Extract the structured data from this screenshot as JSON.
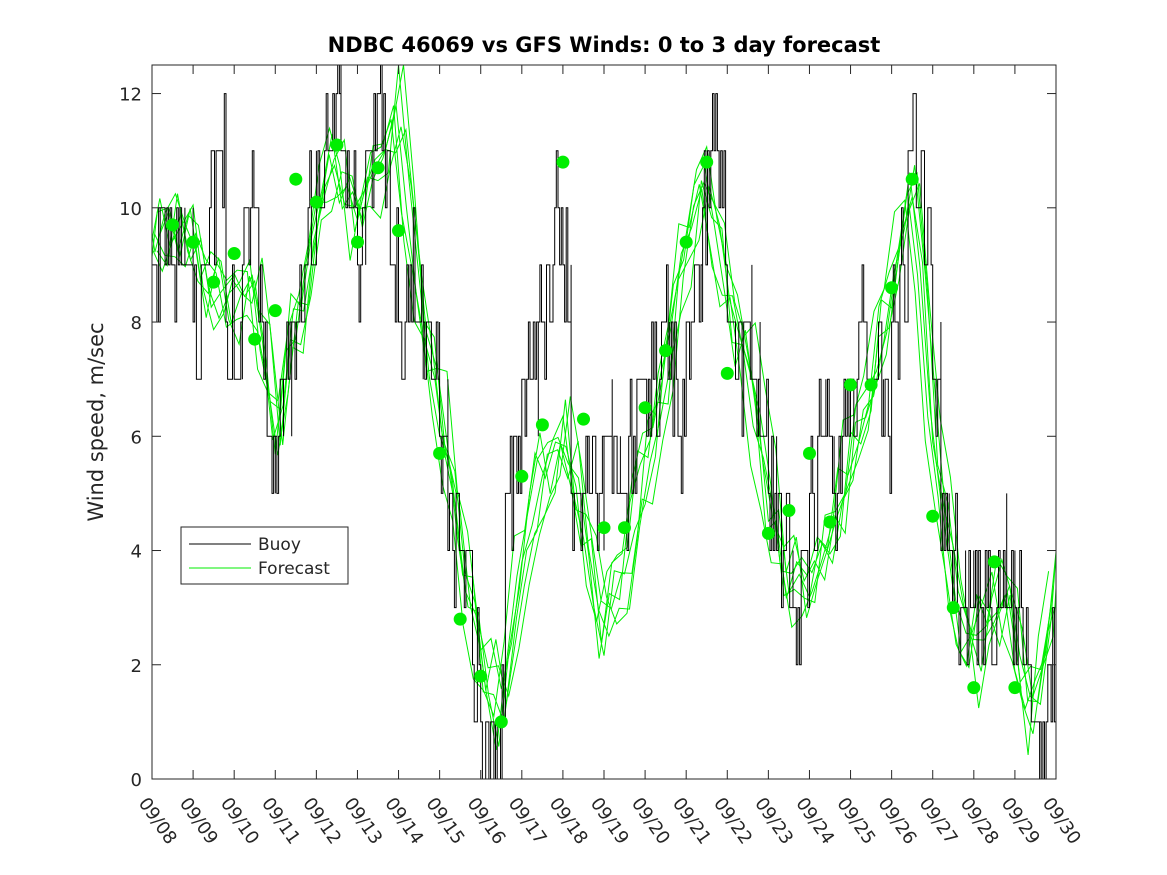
{
  "chart_data": {
    "type": "line",
    "title": "NDBC 46069 vs GFS Winds: 0 to 3 day forecast",
    "xlabel": "",
    "ylabel": "Wind speed, m/sec",
    "xlim": [
      "09/08",
      "09/30"
    ],
    "ylim": [
      0,
      12.5
    ],
    "x_tick_labels": [
      "09/08",
      "09/09",
      "09/10",
      "09/11",
      "09/12",
      "09/13",
      "09/14",
      "09/15",
      "09/16",
      "09/17",
      "09/18",
      "09/19",
      "09/20",
      "09/21",
      "09/22",
      "09/23",
      "09/24",
      "09/25",
      "09/26",
      "09/27",
      "09/28",
      "09/29",
      "09/30"
    ],
    "y_ticks": [
      0,
      2,
      4,
      6,
      8,
      10,
      12
    ],
    "grid": false,
    "legend": {
      "position": "middle-left",
      "entries": [
        "Buoy",
        "Forecast"
      ]
    },
    "colors": {
      "buoy": "#000000",
      "forecast": "#00ee00",
      "axis": "#262626"
    },
    "series": [
      {
        "name": "Buoy",
        "style": "step",
        "x_day_of_month": [
          8.0,
          8.2,
          8.4,
          8.6,
          8.8,
          9.0,
          9.2,
          9.4,
          9.6,
          9.8,
          10.0,
          10.2,
          10.4,
          10.6,
          10.8,
          11.0,
          11.2,
          11.4,
          11.6,
          11.8,
          12.0,
          12.2,
          12.4,
          12.6,
          12.8,
          13.0,
          13.2,
          13.4,
          13.6,
          13.8,
          14.0,
          14.2,
          14.4,
          14.6,
          14.8,
          15.0,
          15.2,
          15.4,
          15.6,
          15.8,
          16.0,
          16.2,
          16.4,
          16.6,
          16.8,
          17.0,
          17.2,
          17.4,
          17.6,
          17.8,
          18.0,
          18.2,
          18.4,
          18.6,
          18.8,
          19.0,
          19.2,
          19.4,
          19.6,
          19.8,
          20.0,
          20.2,
          20.4,
          20.6,
          20.8,
          21.0,
          21.2,
          21.4,
          21.6,
          21.8,
          22.0,
          22.2,
          22.4,
          22.6,
          22.8,
          23.0,
          23.2,
          23.4,
          23.6,
          23.8,
          24.0,
          24.2,
          24.4,
          24.6,
          24.8,
          25.0,
          25.2,
          25.4,
          25.6,
          25.8,
          26.0,
          26.2,
          26.4,
          26.6,
          26.8,
          27.0,
          27.2,
          27.4,
          27.6,
          27.8,
          28.0,
          28.2,
          28.4,
          28.6,
          28.8,
          29.0,
          29.2,
          29.4,
          29.6,
          29.8,
          30.0
        ],
        "values": [
          9,
          10,
          9,
          10,
          9,
          8,
          9,
          10,
          11,
          8,
          7,
          9,
          10,
          8,
          6,
          6,
          7,
          8,
          9,
          10,
          10,
          11,
          12,
          11,
          10,
          9,
          11,
          12,
          11,
          9,
          8,
          9,
          8,
          8,
          7,
          6,
          4,
          5,
          3,
          2,
          1,
          0,
          1,
          5,
          6,
          7,
          7,
          8,
          9,
          10,
          9,
          5,
          5,
          6,
          5,
          6,
          5,
          5,
          6,
          7,
          7,
          7,
          8,
          7,
          6,
          8,
          9,
          10,
          11,
          10,
          8,
          7,
          8,
          7,
          6,
          5,
          4,
          4,
          3,
          4,
          5,
          6,
          6,
          5,
          6,
          7,
          8,
          7,
          7,
          6,
          8,
          9,
          11,
          10,
          9,
          7,
          4,
          4,
          3,
          3,
          3,
          3,
          3,
          4,
          3,
          3,
          2,
          1,
          1,
          2,
          2
        ]
      },
      {
        "name": "Forecast",
        "style": "line",
        "x_day_of_month": [
          8.0,
          8.5,
          9.0,
          9.5,
          10.0,
          10.5,
          11.0,
          11.5,
          12.0,
          12.5,
          13.0,
          13.5,
          14.0,
          14.5,
          15.0,
          15.5,
          16.0,
          16.5,
          17.0,
          17.5,
          18.0,
          18.5,
          19.0,
          19.5,
          20.0,
          20.5,
          21.0,
          21.5,
          22.0,
          22.5,
          23.0,
          23.5,
          24.0,
          24.5,
          25.0,
          25.5,
          26.0,
          26.5,
          27.0,
          27.5,
          28.0,
          28.5,
          29.0,
          29.5,
          30.0
        ],
        "values": [
          9.3,
          9.7,
          9.4,
          8.6,
          8.4,
          8.5,
          6.3,
          7.8,
          9.9,
          10.8,
          9.7,
          10.6,
          11.9,
          8.3,
          6.5,
          4.0,
          2.3,
          1.3,
          3.5,
          5.3,
          6.0,
          4.6,
          2.7,
          3.6,
          5.6,
          6.8,
          9.4,
          10.6,
          8.4,
          7.2,
          5.1,
          3.5,
          3.2,
          4.0,
          5.8,
          7.0,
          8.4,
          10.9,
          6.0,
          3.3,
          2.0,
          3.2,
          2.6,
          1.2,
          3.4
        ]
      }
    ],
    "daily_markers": {
      "name": "Forecast",
      "x_day_of_month": [
        8.5,
        9.0,
        9.5,
        10.0,
        10.5,
        11.0,
        11.5,
        12.0,
        12.5,
        13.0,
        13.5,
        14.0,
        15.0,
        15.5,
        16.0,
        16.5,
        17.0,
        17.5,
        18.0,
        18.5,
        19.0,
        19.5,
        20.0,
        20.5,
        21.0,
        21.5,
        22.0,
        23.0,
        23.5,
        24.0,
        24.5,
        25.0,
        25.5,
        26.0,
        26.5,
        27.0,
        27.5,
        28.0,
        28.5,
        29.0
      ],
      "values": [
        9.7,
        9.4,
        8.7,
        9.2,
        7.7,
        8.2,
        10.5,
        10.1,
        11.1,
        9.4,
        10.7,
        9.6,
        5.7,
        2.8,
        1.8,
        1.0,
        5.3,
        6.2,
        10.8,
        6.3,
        4.4,
        4.4,
        6.5,
        7.5,
        9.4,
        10.8,
        7.1,
        4.3,
        4.7,
        5.7,
        4.5,
        6.9,
        6.9,
        8.6,
        10.5,
        4.6,
        3.0,
        1.6,
        3.8,
        1.6
      ]
    }
  }
}
